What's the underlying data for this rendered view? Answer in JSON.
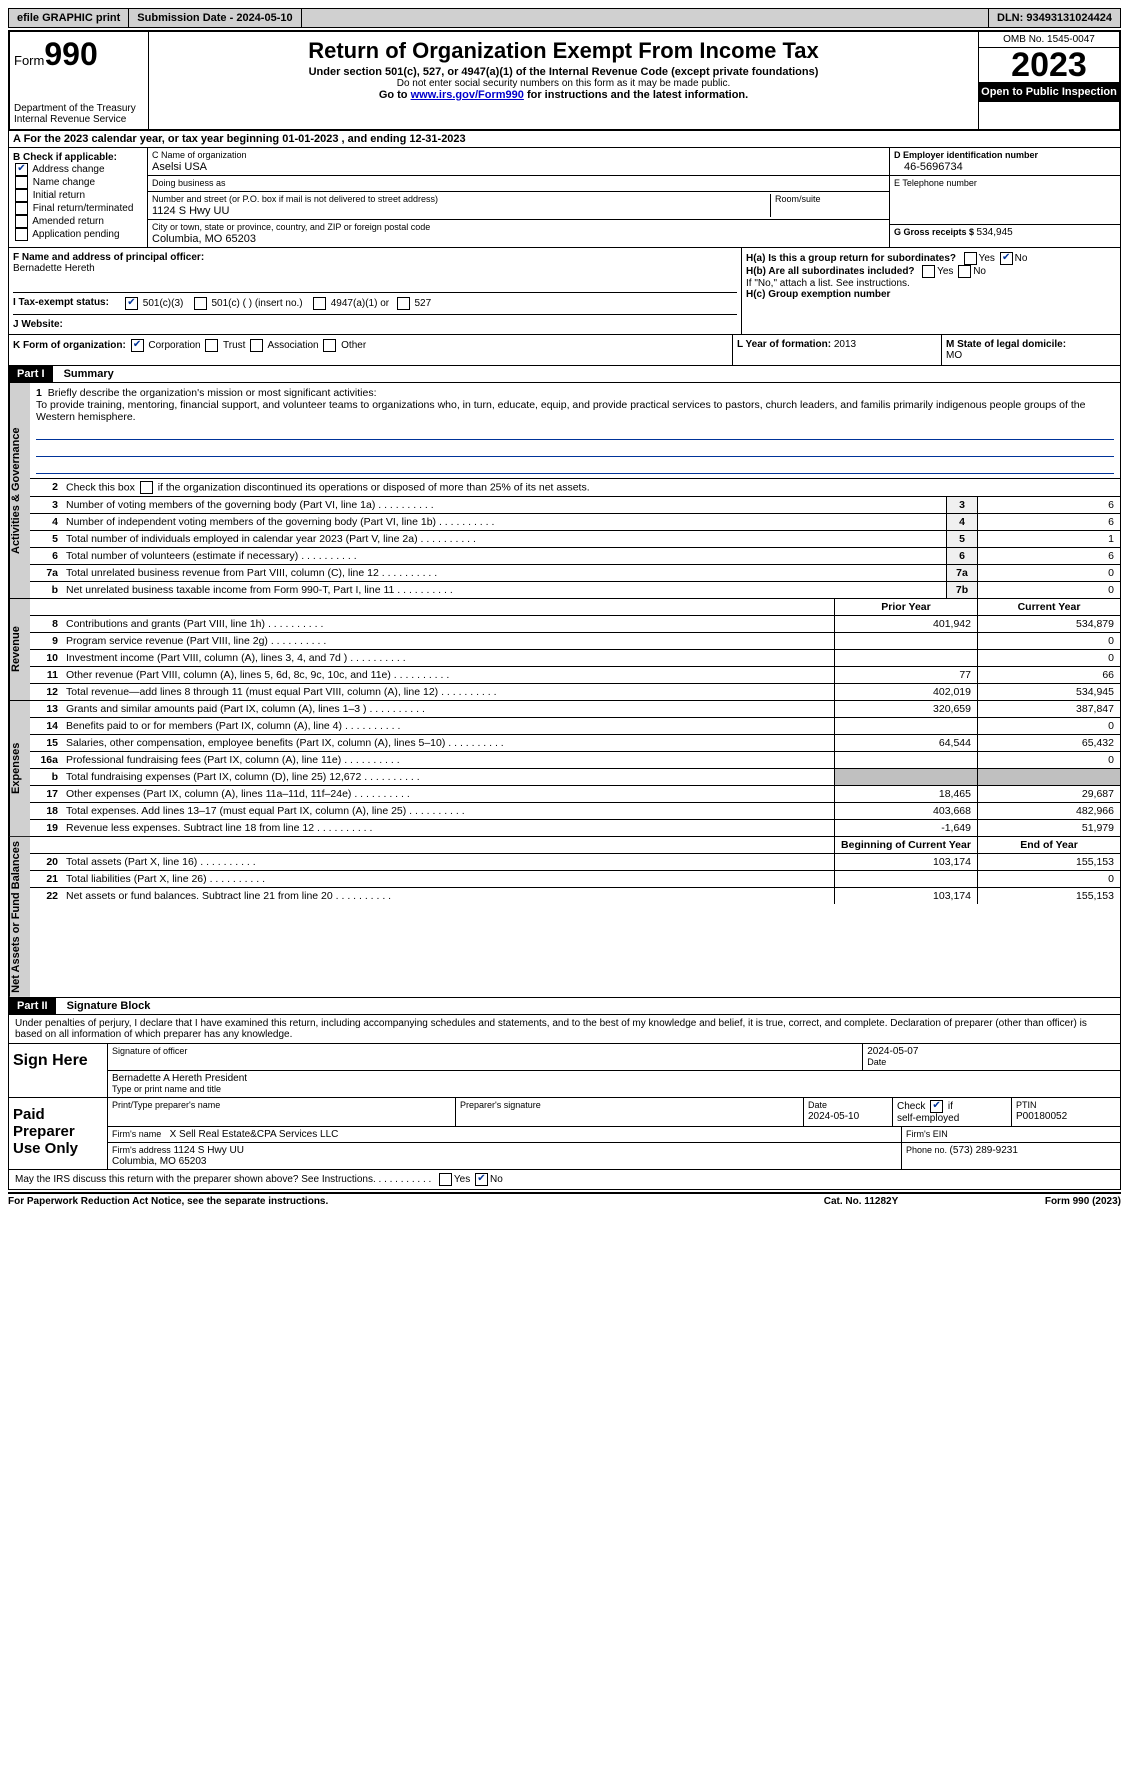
{
  "top": {
    "efile": "efile GRAPHIC print",
    "submission_label": "Submission Date - ",
    "submission_date": "2024-05-10",
    "dln_label": "DLN: ",
    "dln": "93493131024424"
  },
  "header": {
    "form_label": "Form",
    "form_no": "990",
    "dept": "Department of the Treasury\nInternal Revenue Service",
    "title": "Return of Organization Exempt From Income Tax",
    "sub": "Under section 501(c), 527, or 4947(a)(1) of the Internal Revenue Code (except private foundations)",
    "ssn": "Do not enter social security numbers on this form as it may be made public.",
    "goto_pre": "Go to ",
    "goto_url": "www.irs.gov/Form990",
    "goto_post": " for instructions and the latest information.",
    "omb": "OMB No. 1545-0047",
    "year": "2023",
    "inspection": "Open to Public Inspection"
  },
  "calyear": {
    "text_a": "A For the 2023 calendar year, or tax year beginning ",
    "begin": "01-01-2023",
    "text_mid": " , and ending ",
    "end": "12-31-2023"
  },
  "boxB": {
    "label": "B Check if applicable:",
    "items": [
      "Address change",
      "Name change",
      "Initial return",
      "Final return/terminated",
      "Amended return",
      "Application pending"
    ],
    "checked": [
      true,
      false,
      false,
      false,
      false,
      false
    ]
  },
  "boxC": {
    "name_label": "C Name of organization",
    "name": "Aselsi USA",
    "dba_label": "Doing business as",
    "dba": "",
    "street_label": "Number and street (or P.O. box if mail is not delivered to street address)",
    "street": "1124 S Hwy UU",
    "room_label": "Room/suite",
    "city_label": "City or town, state or province, country, and ZIP or foreign postal code",
    "city": "Columbia, MO  65203"
  },
  "boxD": {
    "ein_label": "D Employer identification number",
    "ein": "46-5696734",
    "phone_label": "E Telephone number",
    "phone": "",
    "gross_label": "G Gross receipts $ ",
    "gross": "534,945"
  },
  "boxF": {
    "label": "F  Name and address of principal officer:",
    "name": "Bernadette Hereth"
  },
  "boxH": {
    "ha": "H(a)  Is this a group return for subordinates?",
    "ha_no": true,
    "hb": "H(b)  Are all subordinates included?",
    "hb_note": "If \"No,\" attach a list. See instructions.",
    "hc": "H(c)  Group exemption number"
  },
  "boxI": {
    "label": "I   Tax-exempt status:",
    "opt_501c3": "501(c)(3)",
    "opt_501c": "501(c) (  ) (insert no.)",
    "opt_4947": "4947(a)(1) or",
    "opt_527": "527"
  },
  "boxJ": {
    "label": "J   Website:",
    "val": ""
  },
  "boxK": {
    "label": "K Form of organization:",
    "corp": "Corporation",
    "trust": "Trust",
    "assoc": "Association",
    "other": "Other"
  },
  "boxL": {
    "label": "L Year of formation: ",
    "val": "2013"
  },
  "boxM": {
    "label": "M State of legal domicile:",
    "val": "MO"
  },
  "part1": {
    "header": "Part I",
    "title": "Summary",
    "mission_label": "Briefly describe the organization's mission or most significant activities:",
    "mission": "To provide training, mentoring, financial support, and volunteer teams to organizations who, in turn, educate, equip, and provide practical services to pastors, church leaders, and familis primarily indigenous people groups of the Western hemisphere.",
    "line2": "Check this box       if the organization discontinued its operations or disposed of more than 25% of its net assets.",
    "govRows": [
      {
        "n": "3",
        "t": "Number of voting members of the governing body (Part VI, line 1a)",
        "b": "3",
        "v": "6"
      },
      {
        "n": "4",
        "t": "Number of independent voting members of the governing body (Part VI, line 1b)",
        "b": "4",
        "v": "6"
      },
      {
        "n": "5",
        "t": "Total number of individuals employed in calendar year 2023 (Part V, line 2a)",
        "b": "5",
        "v": "1"
      },
      {
        "n": "6",
        "t": "Total number of volunteers (estimate if necessary)",
        "b": "6",
        "v": "6"
      },
      {
        "n": "7a",
        "t": "Total unrelated business revenue from Part VIII, column (C), line 12",
        "b": "7a",
        "v": "0"
      },
      {
        "n": "b",
        "t": "Net unrelated business taxable income from Form 990-T, Part I, line 11",
        "b": "7b",
        "v": "0"
      }
    ],
    "prior_label": "Prior Year",
    "current_label": "Current Year",
    "revRows": [
      {
        "n": "8",
        "t": "Contributions and grants (Part VIII, line 1h)",
        "p": "401,942",
        "c": "534,879"
      },
      {
        "n": "9",
        "t": "Program service revenue (Part VIII, line 2g)",
        "p": "",
        "c": "0"
      },
      {
        "n": "10",
        "t": "Investment income (Part VIII, column (A), lines 3, 4, and 7d )",
        "p": "",
        "c": "0"
      },
      {
        "n": "11",
        "t": "Other revenue (Part VIII, column (A), lines 5, 6d, 8c, 9c, 10c, and 11e)",
        "p": "77",
        "c": "66"
      },
      {
        "n": "12",
        "t": "Total revenue—add lines 8 through 11 (must equal Part VIII, column (A), line 12)",
        "p": "402,019",
        "c": "534,945"
      }
    ],
    "expRows": [
      {
        "n": "13",
        "t": "Grants and similar amounts paid (Part IX, column (A), lines 1–3 )",
        "p": "320,659",
        "c": "387,847"
      },
      {
        "n": "14",
        "t": "Benefits paid to or for members (Part IX, column (A), line 4)",
        "p": "",
        "c": "0"
      },
      {
        "n": "15",
        "t": "Salaries, other compensation, employee benefits (Part IX, column (A), lines 5–10)",
        "p": "64,544",
        "c": "65,432"
      },
      {
        "n": "16a",
        "t": "Professional fundraising fees (Part IX, column (A), line 11e)",
        "p": "",
        "c": "0"
      },
      {
        "n": "b",
        "t": "Total fundraising expenses (Part IX, column (D), line 25) 12,672",
        "p": "",
        "c": "",
        "shade": true
      },
      {
        "n": "17",
        "t": "Other expenses (Part IX, column (A), lines 11a–11d, 11f–24e)",
        "p": "18,465",
        "c": "29,687"
      },
      {
        "n": "18",
        "t": "Total expenses. Add lines 13–17 (must equal Part IX, column (A), line 25)",
        "p": "403,668",
        "c": "482,966"
      },
      {
        "n": "19",
        "t": "Revenue less expenses. Subtract line 18 from line 12",
        "p": "-1,649",
        "c": "51,979"
      }
    ],
    "begin_label": "Beginning of Current Year",
    "end_label": "End of Year",
    "netRows": [
      {
        "n": "20",
        "t": "Total assets (Part X, line 16)",
        "p": "103,174",
        "c": "155,153"
      },
      {
        "n": "21",
        "t": "Total liabilities (Part X, line 26)",
        "p": "",
        "c": "0"
      },
      {
        "n": "22",
        "t": "Net assets or fund balances. Subtract line 21 from line 20",
        "p": "103,174",
        "c": "155,153"
      }
    ]
  },
  "vtabs": {
    "gov": "Activities & Governance",
    "rev": "Revenue",
    "exp": "Expenses",
    "net": "Net Assets or Fund Balances"
  },
  "part2": {
    "header": "Part II",
    "title": "Signature Block",
    "declaration": "Under penalties of perjury, I declare that I have examined this return, including accompanying schedules and statements, and to the best of my knowledge and belief, it is true, correct, and complete. Declaration of preparer (other than officer) is based on all information of which preparer has any knowledge."
  },
  "sign": {
    "label": "Sign Here",
    "sig_label": "Signature of officer",
    "date_label": "Date",
    "date": "2024-05-07",
    "officer": "Bernadette A Hereth President",
    "type_label": "Type or print name and title"
  },
  "paid": {
    "label": "Paid Preparer Use Only",
    "name_label": "Print/Type preparer's name",
    "name": "",
    "sig_label": "Preparer's signature",
    "date_label": "Date",
    "date": "2024-05-10",
    "check_label": "Check         if self-employed",
    "ptin_label": "PTIN",
    "ptin": "P00180052",
    "firm_label": "Firm's name",
    "firm": "X Sell Real Estate&CPA Services LLC",
    "ein_label": "Firm's EIN",
    "addr_label": "Firm's address",
    "addr": "1124 S Hwy UU\nColumbia, MO  65203",
    "phone_label": "Phone no. ",
    "phone": "(573) 289-9231"
  },
  "discuss": {
    "text": "May the IRS discuss this return with the preparer shown above? See Instructions.",
    "no": true
  },
  "footer": {
    "pra": "For Paperwork Reduction Act Notice, see the separate instructions.",
    "cat": "Cat. No. 11282Y",
    "form": "Form 990 (2023)"
  }
}
